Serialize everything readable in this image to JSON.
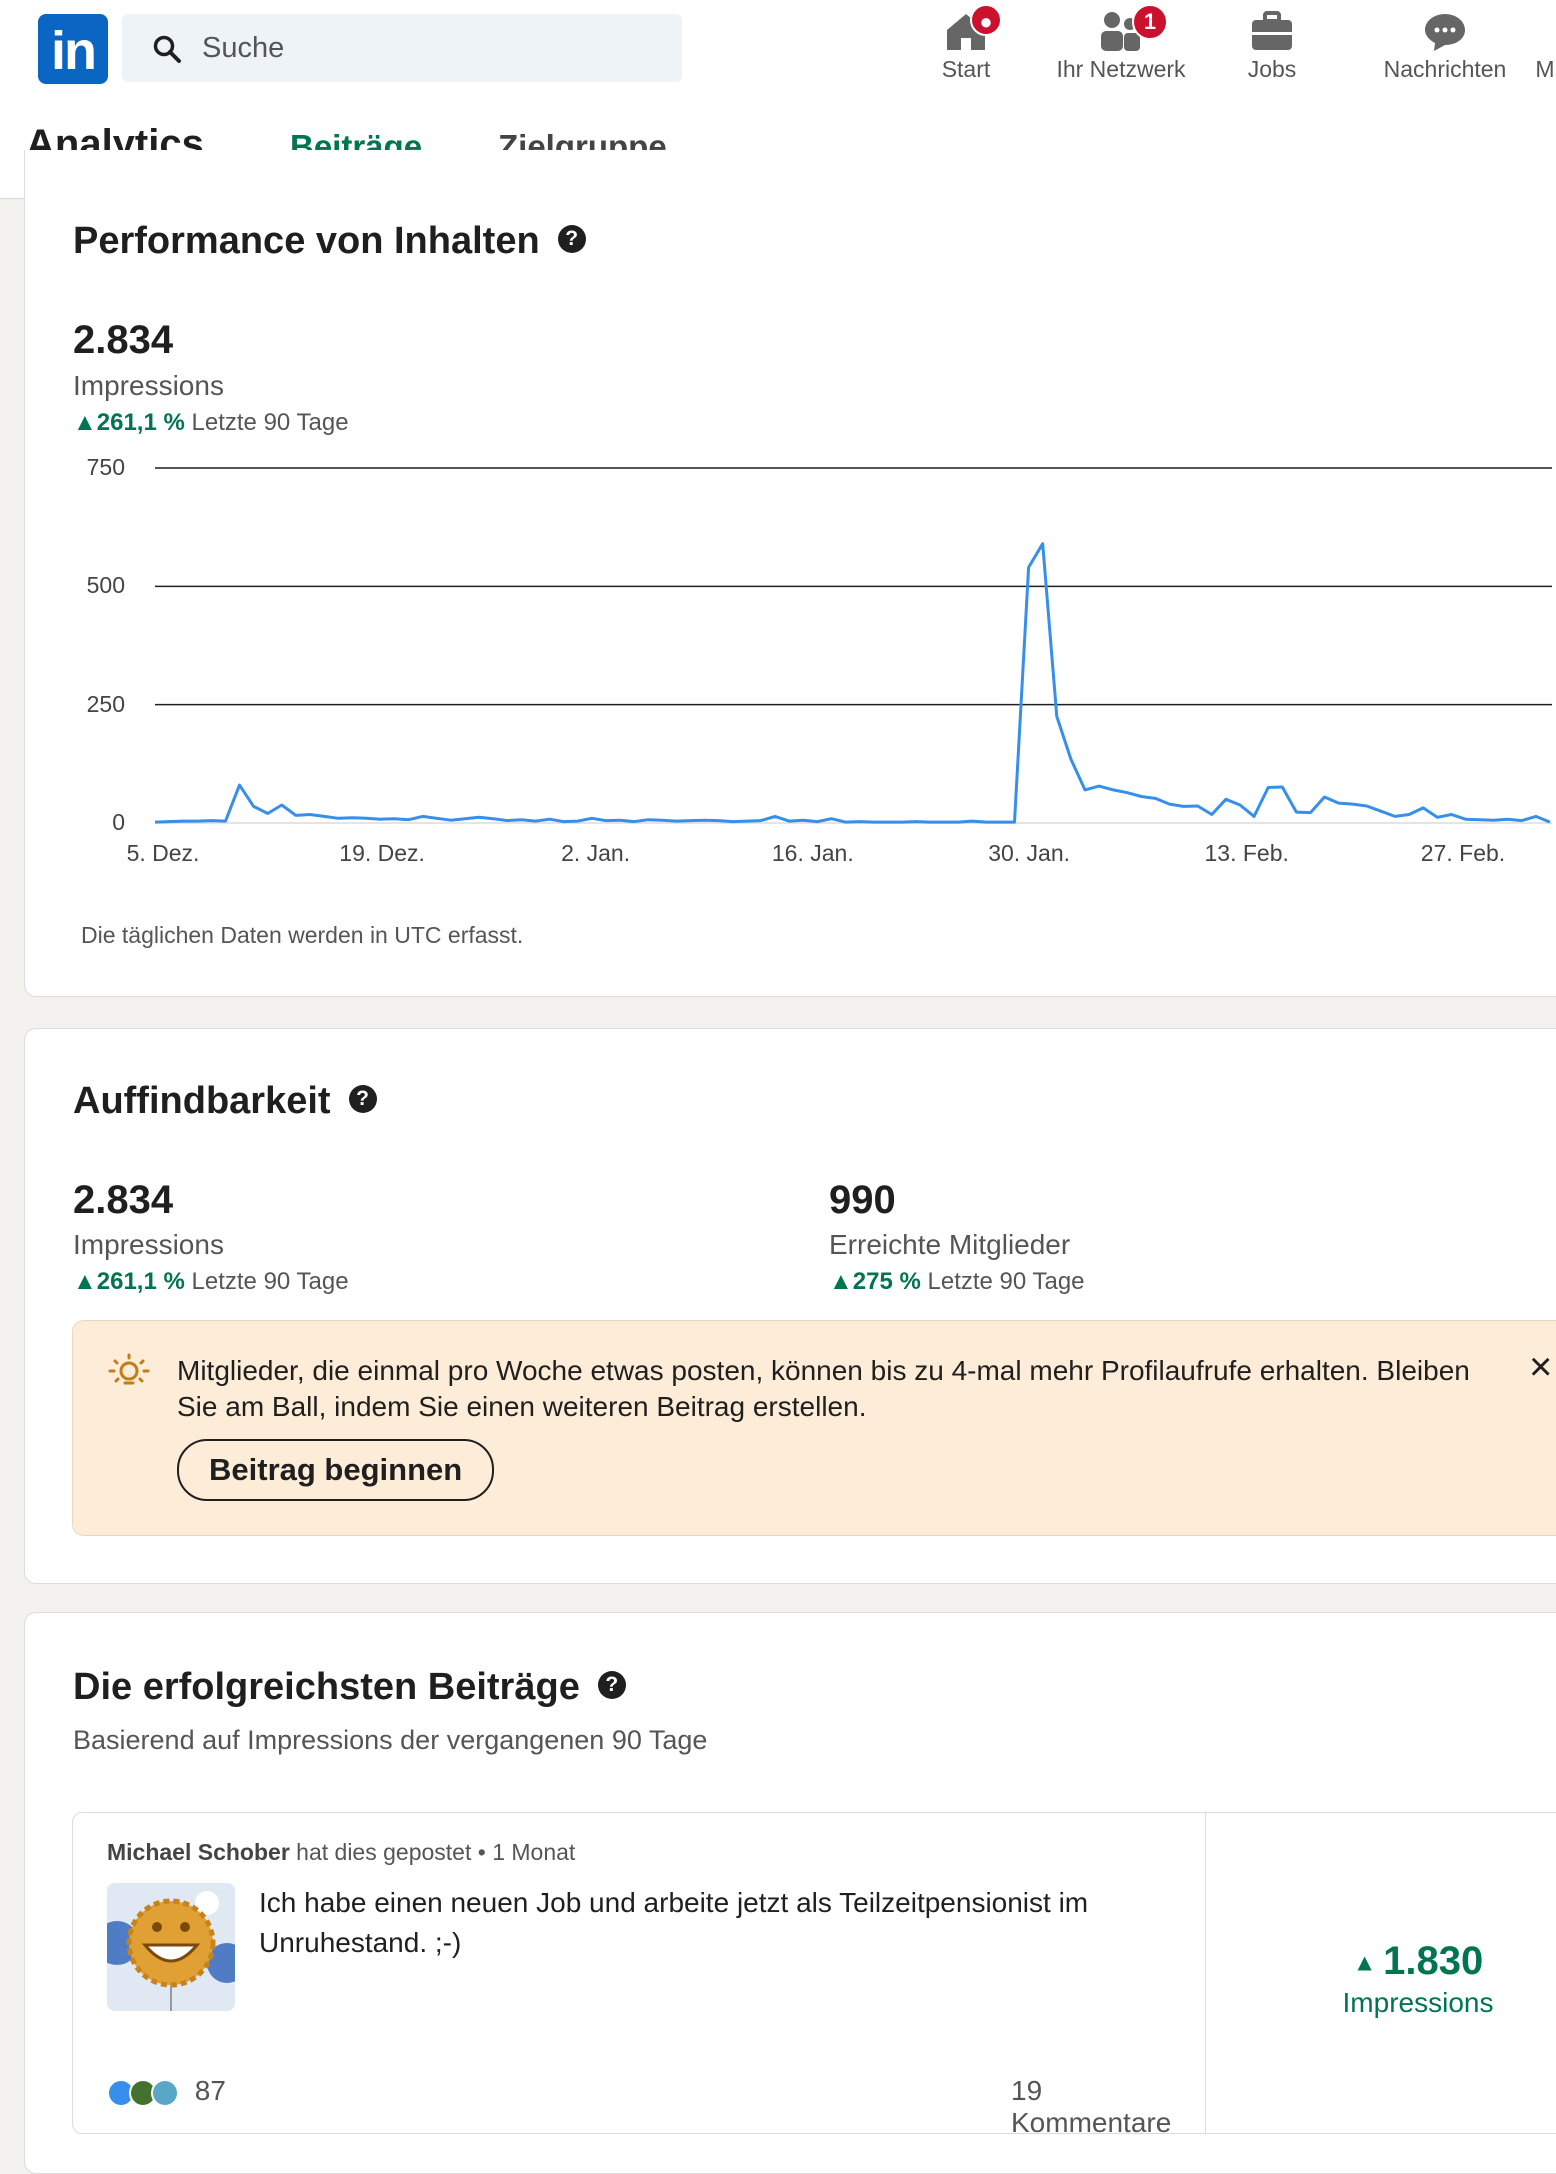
{
  "topbar": {
    "logo": "in",
    "search_placeholder": "Suche",
    "nav": [
      {
        "label": "Start",
        "icon": "home-icon",
        "badge": "•"
      },
      {
        "label": "Ihr Netzwerk",
        "icon": "network-icon",
        "badge": "1"
      },
      {
        "label": "Jobs",
        "icon": "briefcase-icon",
        "badge": ""
      },
      {
        "label": "Nachrichten",
        "icon": "messaging-icon",
        "badge": ""
      },
      {
        "label": "M",
        "icon": "",
        "badge": ""
      }
    ]
  },
  "subnav": {
    "title": "Analytics",
    "tabs": [
      {
        "label": "Beiträge",
        "active": true
      },
      {
        "label": "Zielgruppe",
        "active": false
      }
    ]
  },
  "performance": {
    "title": "Performance von Inhalten",
    "value": "2.834",
    "metric": "Impressions",
    "change": "261,1 %",
    "period": "Letzte 90 Tage",
    "note": "Die täglichen Daten werden in UTC erfasst."
  },
  "chart_data": {
    "type": "line",
    "y_ticks": [
      "0",
      "250",
      "500",
      "750"
    ],
    "ylim": [
      0,
      750
    ],
    "x_ticks": [
      "5. Dez.",
      "19. Dez.",
      "2. Jan.",
      "16. Jan.",
      "30. Jan.",
      "13. Feb.",
      "27. Feb."
    ],
    "grid": true,
    "series": [
      {
        "color": "#378fe9",
        "values": [
          2,
          3,
          4,
          4,
          5,
          4,
          80,
          35,
          20,
          38,
          16,
          18,
          14,
          10,
          11,
          10,
          8,
          9,
          7,
          14,
          10,
          6,
          9,
          12,
          9,
          5,
          7,
          4,
          8,
          3,
          4,
          10,
          5,
          6,
          3,
          7,
          6,
          4,
          5,
          6,
          5,
          3,
          4,
          5,
          14,
          4,
          6,
          3,
          9,
          2,
          3,
          2,
          2,
          2,
          3,
          2,
          2,
          2,
          4,
          2,
          2,
          2,
          540,
          590,
          225,
          135,
          70,
          78,
          70,
          64,
          56,
          52,
          40,
          35,
          36,
          18,
          50,
          38,
          14,
          75,
          76,
          23,
          22,
          55,
          42,
          40,
          36,
          25,
          14,
          18,
          32,
          12,
          18,
          8,
          7,
          6,
          8,
          5,
          14,
          2
        ]
      }
    ]
  },
  "findability": {
    "title": "Auffindbarkeit",
    "stats": [
      {
        "value": "2.834",
        "label": "Impressions",
        "change": "261,1 %",
        "period": "Letzte 90 Tage"
      },
      {
        "value": "990",
        "label": "Erreichte Mitglieder",
        "change": "275 %",
        "period": "Letzte 90 Tage"
      }
    ],
    "tip_text": "Mitglieder, die einmal pro Woche etwas posten, können bis zu 4-mal mehr Profilaufrufe erhalten. Bleiben Sie am Ball, indem Sie einen weiteren Beitrag erstellen.",
    "tip_button": "Beitrag beginnen",
    "close": "×"
  },
  "top_posts": {
    "title": "Die erfolgreichsten Beiträge",
    "subtitle": "Basierend auf Impressions der vergangenen 90 Tage",
    "post": {
      "author": "Michael Schober",
      "meta_rest": " hat dies gepostet • 1 Monat",
      "text": "Ich habe einen neuen Job und arbeite jetzt als Teilzeitpensionist im Unruhestand. ;-)",
      "reactions": "87",
      "comments": "19 Kommentare",
      "impressions": "1.830",
      "impressions_label": "Impressions"
    }
  }
}
